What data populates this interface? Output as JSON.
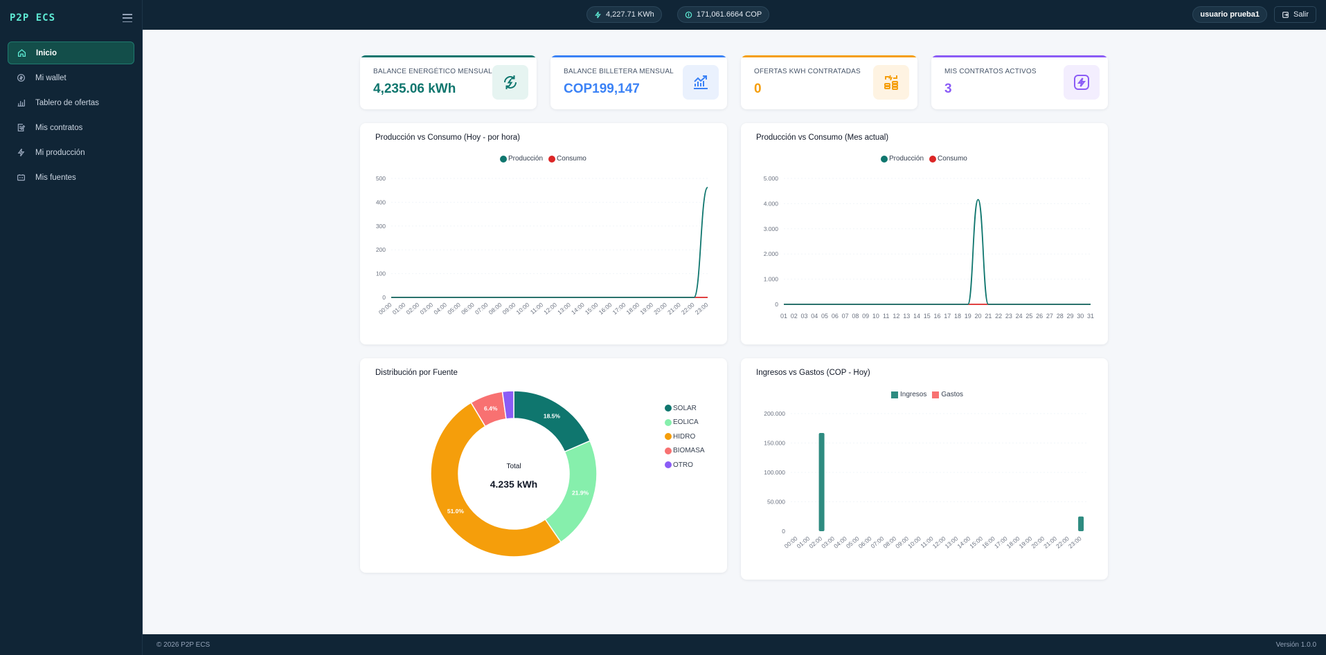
{
  "app": {
    "brand": "P2P ECS",
    "footer_left": "© 2026 P2P ECS",
    "footer_right": "Versión 1.0.0"
  },
  "sidebar": {
    "items": [
      {
        "label": "Inicio",
        "icon": "home-icon",
        "active": true
      },
      {
        "label": "Mi wallet",
        "icon": "coin-icon",
        "active": false
      },
      {
        "label": "Tablero de ofertas",
        "icon": "bar-chart-icon",
        "active": false
      },
      {
        "label": "Mis contratos",
        "icon": "contract-icon",
        "active": false
      },
      {
        "label": "Mi producción",
        "icon": "bolt-icon",
        "active": false
      },
      {
        "label": "Mis fuentes",
        "icon": "battery-icon",
        "active": false
      }
    ]
  },
  "header": {
    "energy_pill": "4,227.71 KWh",
    "money_pill": "171,061.6664 COP",
    "user": "usuario prueba1",
    "logout": "Salir"
  },
  "kpis": [
    {
      "label": "BALANCE ENERGÉTICO MENSUAL",
      "value": "4,235.06 kWh",
      "color": "#0f766e",
      "icon": "recycle-energy-icon"
    },
    {
      "label": "BALANCE BILLETERA MENSUAL",
      "value": "COP199,147",
      "color": "#3b82f6",
      "icon": "trend-up-icon"
    },
    {
      "label": "OFERTAS KWH CONTRATADAS",
      "value": "0",
      "color": "#f59e0b",
      "icon": "coins-swap-icon"
    },
    {
      "label": "MIS CONTRATOS ACTIVOS",
      "value": "3",
      "color": "#8b5cf6",
      "icon": "bolt-box-icon"
    }
  ],
  "chart_data": [
    {
      "type": "line",
      "title": "Producción vs Consumo (Hoy - por hora)",
      "x": [
        "00:00",
        "01:00",
        "02:00",
        "03:00",
        "04:00",
        "05:00",
        "06:00",
        "07:00",
        "08:00",
        "09:00",
        "10:00",
        "11:00",
        "12:00",
        "13:00",
        "14:00",
        "15:00",
        "16:00",
        "17:00",
        "18:00",
        "19:00",
        "20:00",
        "21:00",
        "22:00",
        "23:00"
      ],
      "yticks": [
        "0",
        "100",
        "200",
        "300",
        "400",
        "500"
      ],
      "ylim": [
        0,
        500
      ],
      "series": [
        {
          "name": "Producción",
          "color": "#0f766e",
          "values": [
            0,
            0,
            0,
            0,
            0,
            0,
            0,
            0,
            0,
            0,
            0,
            0,
            0,
            0,
            0,
            0,
            0,
            0,
            0,
            0,
            0,
            0,
            0,
            462
          ]
        },
        {
          "name": "Consumo",
          "color": "#dc2626",
          "values": [
            0,
            0,
            0,
            0,
            0,
            0,
            0,
            0,
            0,
            0,
            0,
            0,
            0,
            0,
            0,
            0,
            0,
            0,
            0,
            0,
            0,
            0,
            0,
            0
          ]
        }
      ]
    },
    {
      "type": "line",
      "title": "Producción vs Consumo (Mes actual)",
      "x": [
        "01",
        "02",
        "03",
        "04",
        "05",
        "06",
        "07",
        "08",
        "09",
        "10",
        "11",
        "12",
        "13",
        "14",
        "15",
        "16",
        "17",
        "18",
        "19",
        "20",
        "21",
        "22",
        "23",
        "24",
        "25",
        "26",
        "27",
        "28",
        "29",
        "30",
        "31"
      ],
      "yticks": [
        "0",
        "1.000",
        "2.000",
        "3.000",
        "4.000",
        "5.000"
      ],
      "ylim": [
        0,
        5000
      ],
      "series": [
        {
          "name": "Producción",
          "color": "#0f766e",
          "values": [
            0,
            0,
            0,
            0,
            0,
            0,
            0,
            0,
            0,
            0,
            0,
            0,
            0,
            0,
            0,
            0,
            0,
            0,
            0,
            4160,
            0,
            0,
            0,
            0,
            0,
            0,
            0,
            0,
            0,
            0,
            0
          ]
        },
        {
          "name": "Consumo",
          "color": "#dc2626",
          "values": [
            0,
            0,
            0,
            0,
            0,
            0,
            0,
            0,
            0,
            0,
            0,
            0,
            0,
            0,
            0,
            0,
            0,
            0,
            0,
            0,
            0,
            0,
            0,
            0,
            0,
            0,
            0,
            0,
            0,
            0,
            0
          ]
        }
      ]
    },
    {
      "type": "pie",
      "title": "Distribución por Fuente",
      "center_label": "Total",
      "center_value": "4.235 kWh",
      "categories": [
        "SOLAR",
        "EOLICA",
        "HIDRO",
        "BIOMASA",
        "OTRO"
      ],
      "values": [
        18.5,
        21.9,
        51.0,
        6.4,
        2.2
      ],
      "labels": [
        "18.5%",
        "21.9%",
        "51.0%",
        "6.4%",
        ""
      ],
      "colors": [
        "#0f766e",
        "#86efac",
        "#f59e0b",
        "#f87171",
        "#8b5cf6"
      ]
    },
    {
      "type": "bar",
      "title": "Ingresos vs Gastos (COP - Hoy)",
      "categories": [
        "00:00",
        "01:00",
        "02:00",
        "03:00",
        "04:00",
        "05:00",
        "06:00",
        "07:00",
        "08:00",
        "09:00",
        "10:00",
        "11:00",
        "12:00",
        "13:00",
        "14:00",
        "15:00",
        "16:00",
        "17:00",
        "18:00",
        "19:00",
        "20:00",
        "21:00",
        "22:00",
        "23:00"
      ],
      "yticks": [
        "0",
        "50.000",
        "100.000",
        "150.000",
        "200.000"
      ],
      "ylim": [
        0,
        200000
      ],
      "series": [
        {
          "name": "Ingresos",
          "color": "#2e8b80",
          "values": [
            0,
            0,
            167000,
            0,
            0,
            0,
            0,
            0,
            0,
            0,
            0,
            0,
            0,
            0,
            0,
            0,
            0,
            0,
            0,
            0,
            0,
            0,
            0,
            25000
          ]
        },
        {
          "name": "Gastos",
          "color": "#f87171",
          "values": [
            0,
            0,
            0,
            0,
            0,
            0,
            0,
            0,
            0,
            0,
            0,
            0,
            0,
            0,
            0,
            0,
            0,
            0,
            0,
            0,
            0,
            0,
            0,
            0
          ]
        }
      ]
    }
  ]
}
